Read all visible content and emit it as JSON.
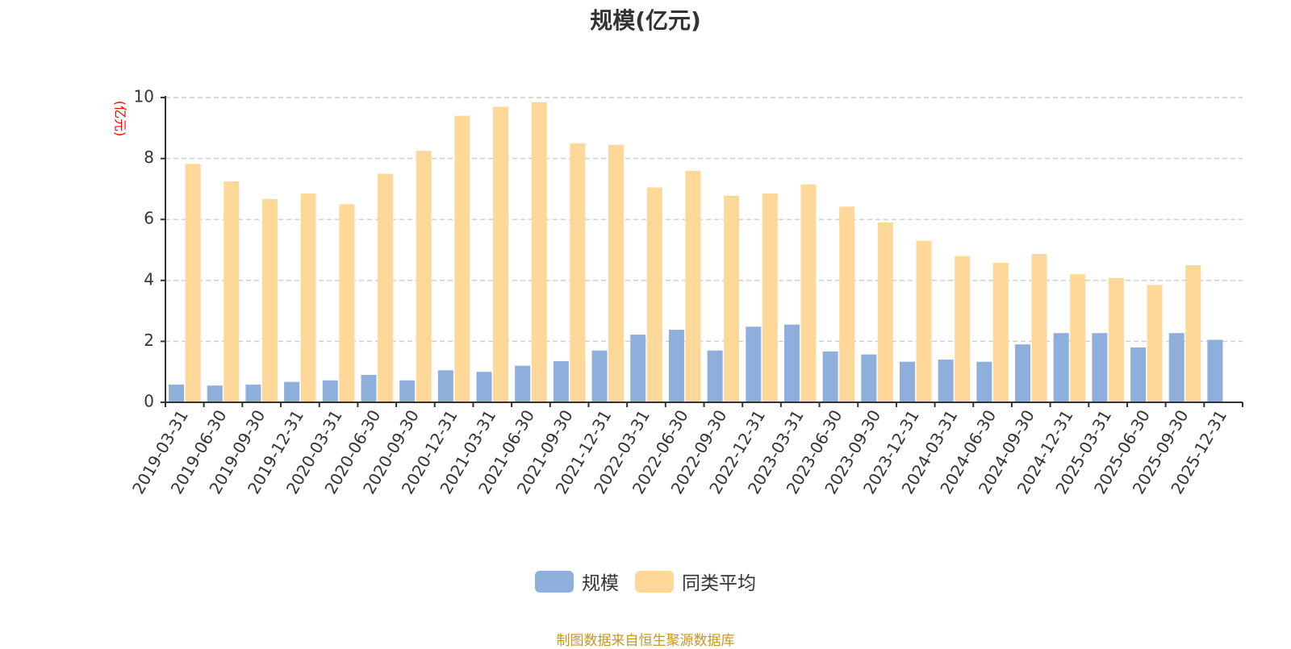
{
  "chart_data": {
    "type": "bar",
    "title": "规模(亿元)",
    "ylabel": "(亿元)",
    "xlabel": "",
    "ylim": [
      0,
      10
    ],
    "yticks": [
      0,
      2,
      4,
      6,
      8,
      10
    ],
    "grid": true,
    "legend_position": "bottom-center",
    "categories": [
      "2019-03-31",
      "2019-06-30",
      "2019-09-30",
      "2019-12-31",
      "2020-03-31",
      "2020-06-30",
      "2020-09-30",
      "2020-12-31",
      "2021-03-31",
      "2021-06-30",
      "2021-09-30",
      "2021-12-31",
      "2022-03-31",
      "2022-06-30",
      "2022-09-30",
      "2022-12-31",
      "2023-03-31",
      "2023-06-30",
      "2023-09-30",
      "2023-12-31",
      "2024-03-31",
      "2024-06-30",
      "2024-09-30",
      "2024-12-31",
      "2025-03-31",
      "2025-06-30",
      "2025-09-30",
      "2025-12-31"
    ],
    "series": [
      {
        "name": "规模",
        "color": "#8eaedc",
        "values": [
          0.58,
          0.55,
          0.58,
          0.67,
          0.72,
          0.9,
          0.72,
          1.05,
          1.0,
          1.2,
          1.35,
          1.7,
          2.22,
          2.38,
          1.7,
          2.48,
          2.55,
          1.67,
          1.57,
          1.33,
          1.4,
          1.33,
          1.9,
          2.27,
          2.27,
          1.8,
          2.27,
          2.05
        ]
      },
      {
        "name": "同类平均",
        "color": "#fed898",
        "values": [
          7.82,
          7.25,
          6.67,
          6.85,
          6.5,
          7.5,
          8.25,
          9.4,
          9.7,
          9.85,
          8.5,
          8.45,
          7.05,
          7.6,
          6.78,
          6.85,
          7.15,
          6.42,
          5.9,
          5.3,
          4.8,
          4.58,
          4.87,
          4.2,
          4.08,
          3.85,
          4.5,
          null
        ]
      }
    ]
  },
  "source_note": "制图数据来自恒生聚源数据库"
}
